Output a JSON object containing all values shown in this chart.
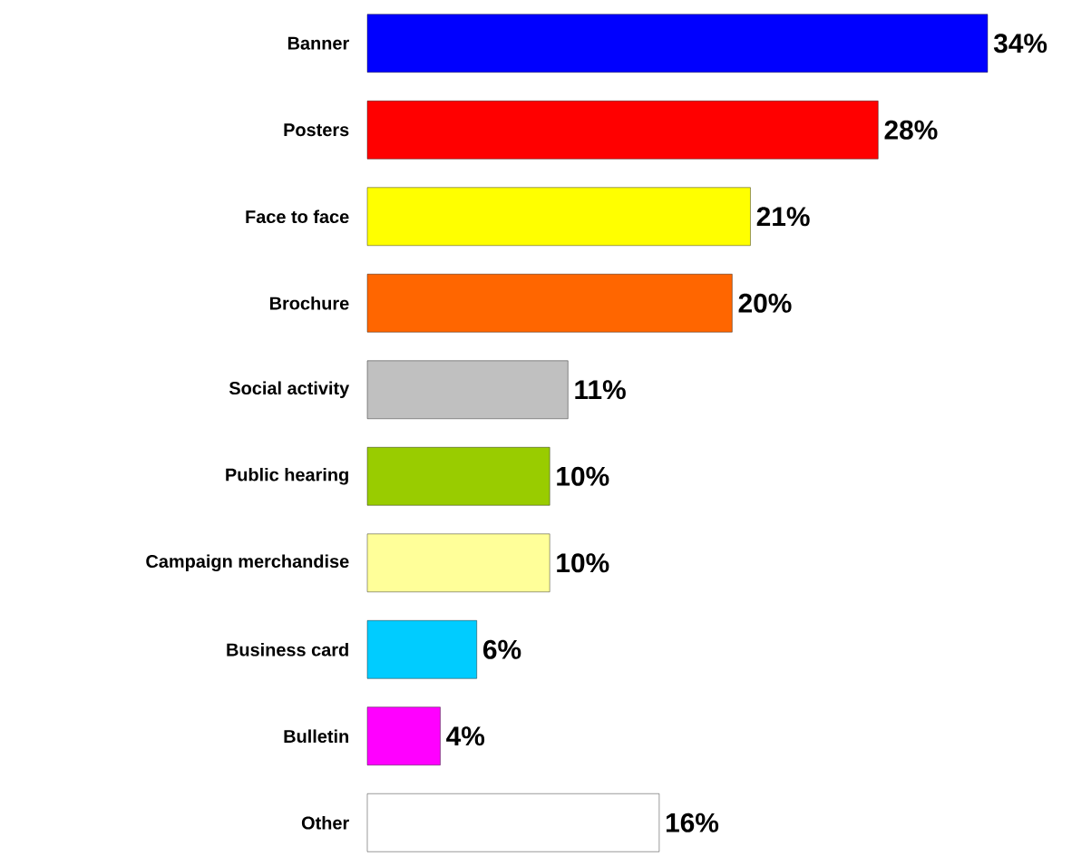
{
  "chart_data": {
    "type": "bar",
    "orientation": "horizontal",
    "categories": [
      "Banner",
      "Posters",
      "Face to face",
      "Brochure",
      "Social activity",
      "Public hearing",
      "Campaign merchandise",
      "Business card",
      "Bulletin",
      "Other"
    ],
    "values": [
      34,
      28,
      21,
      20,
      11,
      10,
      10,
      6,
      4,
      16
    ],
    "value_labels": [
      "34%",
      "28%",
      "21%",
      "20%",
      "11%",
      "10%",
      "10%",
      "6%",
      "4%",
      "16%"
    ],
    "colors": [
      "#0000ff",
      "#ff0000",
      "#ffff00",
      "#ff6600",
      "#c0c0c0",
      "#99cc00",
      "#ffff99",
      "#00ccff",
      "#ff00ff",
      "#ffffff"
    ]
  }
}
